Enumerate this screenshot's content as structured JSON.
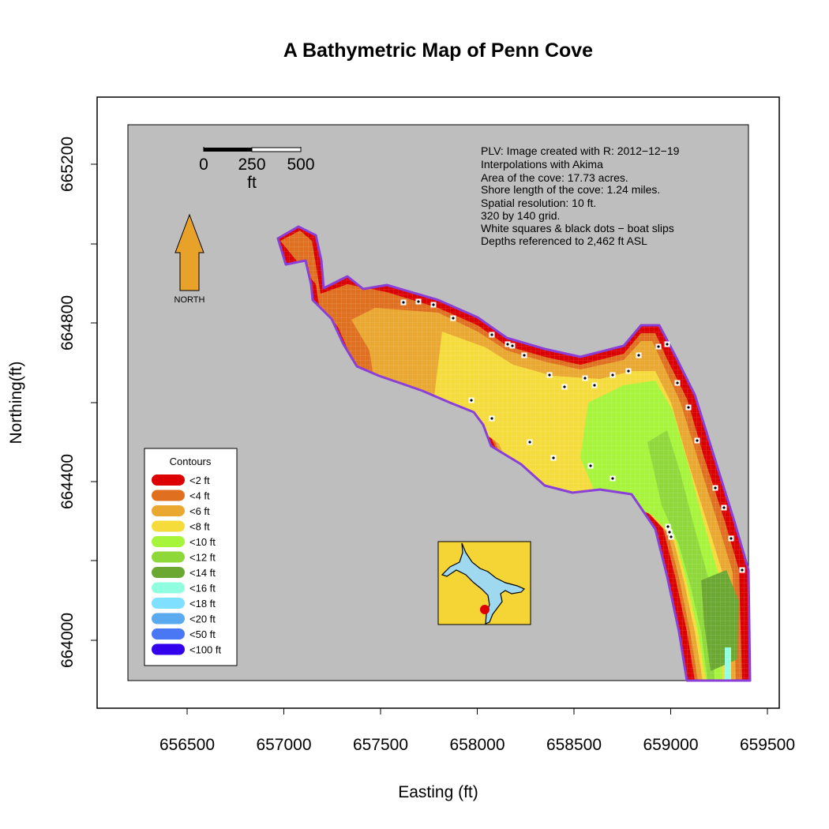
{
  "title": "A Bathymetric Map of  Penn Cove",
  "axes": {
    "xlabel": "Easting (ft)",
    "ylabel": "Northing(ft)",
    "xticks": [
      "656500",
      "657000",
      "657500",
      "658000",
      "658500",
      "659000",
      "659500"
    ],
    "yticks": [
      "664000",
      "664400",
      "664800",
      "665200"
    ]
  },
  "info_lines": [
    "PLV: Image created with R: 2012−12−19",
    "Interpolations with Akima",
    "Area of the cove: 17.73 acres.",
    "Shore length of the cove: 1.24 miles.",
    "Spatial resolution: 10 ft.",
    "320 by 140 grid.",
    "White squares & black dots − boat slips",
    "Depths referenced to 2,462 ft ASL"
  ],
  "scale_bar": {
    "labels": [
      "0",
      "250",
      "500"
    ],
    "unit": "ft"
  },
  "north_arrow": {
    "label": "NORTH",
    "color": "#e8a22a"
  },
  "legend": {
    "title": "Contours",
    "items": [
      {
        "label": "<2 ft",
        "color": "#dd0000"
      },
      {
        "label": "<4 ft",
        "color": "#e07020"
      },
      {
        "label": "<6 ft",
        "color": "#eaa830"
      },
      {
        "label": "<8 ft",
        "color": "#f5dc3a"
      },
      {
        "label": "<10 ft",
        "color": "#a6f53a"
      },
      {
        "label": "<12 ft",
        "color": "#8fd83a"
      },
      {
        "label": "<14 ft",
        "color": "#6aa832"
      },
      {
        "label": "<16 ft",
        "color": "#90ffe0"
      },
      {
        "label": "<18 ft",
        "color": "#80e0ff"
      },
      {
        "label": "<20 ft",
        "color": "#5aaaf0"
      },
      {
        "label": "<50 ft",
        "color": "#4a78f5"
      },
      {
        "label": "<100 ft",
        "color": "#3300ee"
      }
    ]
  },
  "colors": {
    "map_background": "#bebebe",
    "shoreline": "#8a3fd8",
    "inset_land": "#f5d535",
    "inset_water": "#9fd9f0",
    "inset_marker": "#dd0000",
    "boat_slip": "#ffffff"
  }
}
